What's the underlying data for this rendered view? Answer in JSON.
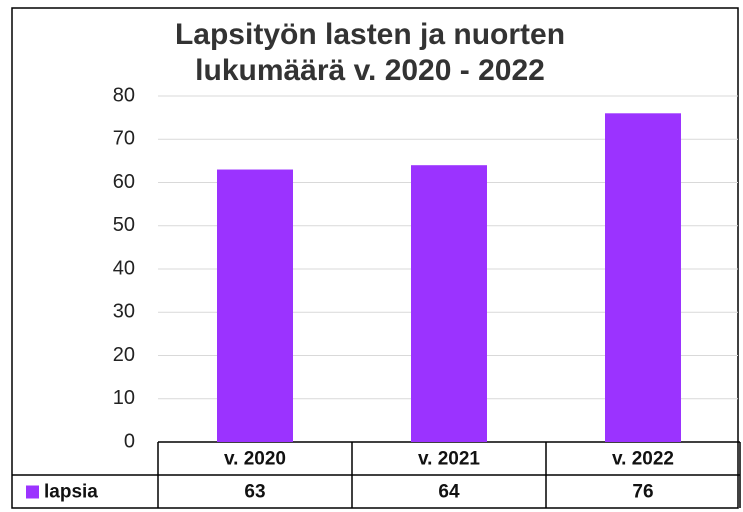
{
  "chart_data": {
    "type": "bar",
    "title": [
      "Lapsityön lasten ja nuorten",
      "lukumäärä  v. 2020 - 2022"
    ],
    "categories": [
      "v. 2020",
      "v. 2021",
      "v. 2022"
    ],
    "series": [
      {
        "name": "lapsia",
        "color": "#9b33ff",
        "values": [
          63,
          64,
          76
        ]
      }
    ],
    "ylim": [
      0,
      80
    ],
    "yticks": [
      0,
      10,
      20,
      30,
      40,
      50,
      60,
      70,
      80
    ],
    "grid": true,
    "legend": "bottom-left"
  }
}
